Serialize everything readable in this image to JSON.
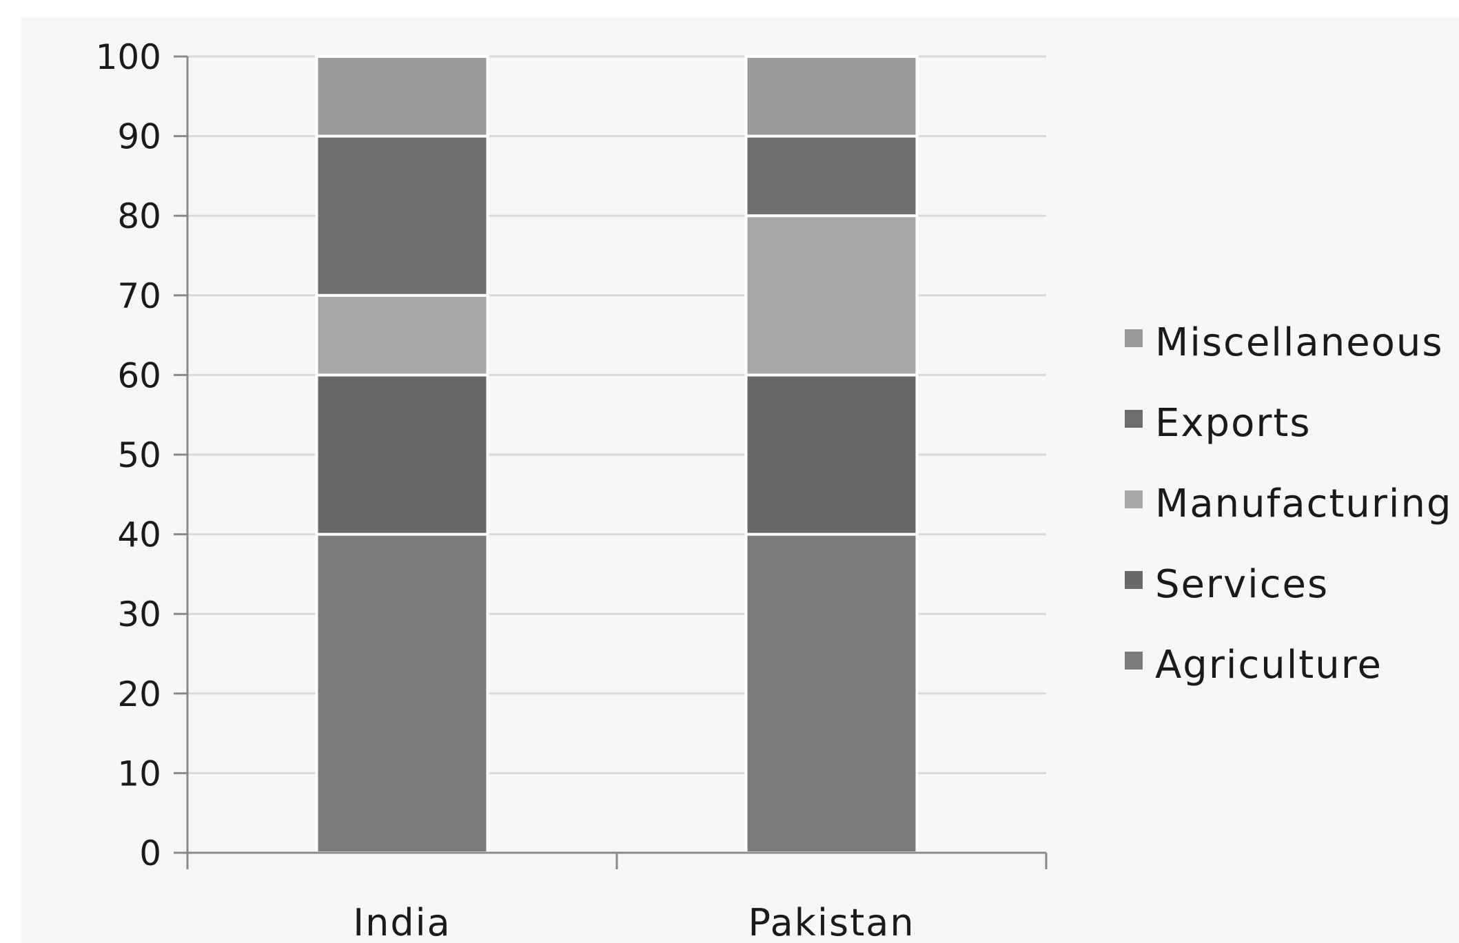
{
  "chart_data": {
    "type": "bar",
    "stacked": true,
    "title": "",
    "xlabel": "",
    "ylabel": "",
    "ylim": [
      0,
      100
    ],
    "yticks": [
      0,
      10,
      20,
      30,
      40,
      50,
      60,
      70,
      80,
      90,
      100
    ],
    "grid": true,
    "legend_position": "right",
    "categories": [
      "India",
      "Pakistan"
    ],
    "series": [
      {
        "name": "Agriculture",
        "values": [
          40,
          40
        ],
        "color": "#7b7b7b"
      },
      {
        "name": "Services",
        "values": [
          20,
          20
        ],
        "color": "#686868"
      },
      {
        "name": "Manufacturing",
        "values": [
          10,
          20
        ],
        "color": "#a7a7a7"
      },
      {
        "name": "Exports",
        "values": [
          20,
          10
        ],
        "color": "#6e6e6e"
      },
      {
        "name": "Miscellaneous",
        "values": [
          10,
          10
        ],
        "color": "#9a9a9a"
      }
    ],
    "legend_order": [
      "Miscellaneous",
      "Exports",
      "Manufacturing",
      "Services",
      "Agriculture"
    ]
  }
}
